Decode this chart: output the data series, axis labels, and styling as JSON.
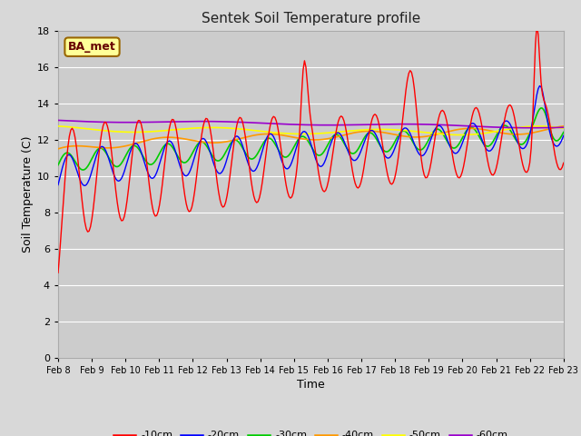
{
  "title": "Sentek Soil Temperature profile",
  "xlabel": "Time",
  "ylabel": "Soil Temperature (C)",
  "annotation": "BA_met",
  "ylim": [
    0,
    18
  ],
  "yticks": [
    0,
    2,
    4,
    6,
    8,
    10,
    12,
    14,
    16,
    18
  ],
  "xtick_labels": [
    "Feb 8",
    "Feb 9",
    "Feb 10",
    "Feb 11",
    "Feb 12",
    "Feb 13",
    "Feb 14",
    "Feb 15",
    "Feb 16",
    "Feb 17",
    "Feb 18",
    "Feb 19",
    "Feb 20",
    "Feb 21",
    "Feb 22",
    "Feb 23"
  ],
  "background_color": "#d8d8d8",
  "plot_bg_upper_color": "#e8e8e8",
  "plot_bg_lower_color": "#d8d8d8",
  "grid_color": "#ffffff",
  "colors": {
    "-10cm": "#ff0000",
    "-20cm": "#0000ff",
    "-30cm": "#00cc00",
    "-40cm": "#ff9900",
    "-50cm": "#ffff00",
    "-60cm": "#9900cc"
  },
  "days": 15
}
